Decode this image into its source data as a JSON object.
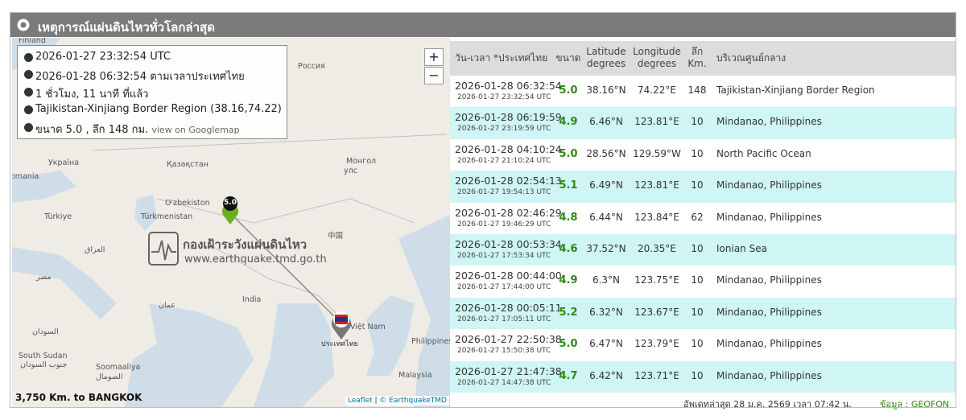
{
  "header": {
    "title": "เหตุการณ์แผ่นดินไหวทั่วโลกล่าสุด"
  },
  "info": {
    "utc": "2026-01-27 23:32:54 UTC",
    "local": "2026-01-28 06:32:54 ตามเวลาประเทศไทย",
    "ago": "1 ชั่วโมง, 11 นาที ที่แล้ว",
    "region": "Tajikistan-Xinjiang Border Region (38.16,74.22)",
    "magnitude": "ขนาด 5.0 , ลึก 148 กม.",
    "map_link": "view on Googlemap"
  },
  "map": {
    "zoom_in": "+",
    "zoom_out": "−",
    "labels": [
      "Finland",
      "Россия",
      "Україна",
      "Қазақстан",
      "Монгол",
      "улс",
      "omania",
      "Türkiye",
      "Türkmenistan",
      "O'zbekiston",
      "中国",
      "العراق",
      "مصر",
      "India",
      "عمان",
      "Việt Nam",
      "Philippines",
      "السودان",
      "South Sudan",
      "جنوب السودان",
      "Soomaaliya",
      "الصومال",
      "Malaysia"
    ],
    "marker": "5.0",
    "bangkok": "ประเทศไทย",
    "watermark_title": "กองเฝ้าระวังแผ่นดินไหว",
    "watermark_url": "www.earthquake.tmd.go.th",
    "distance": "3,750 Km. to BANGKOK",
    "attribution_leaflet": "Leaflet",
    "attribution_source": "© EarthquakeTMD"
  },
  "table": {
    "columns": [
      [
        "วัน-เวลา *ประเทศไทย"
      ],
      [
        "ขนาด"
      ],
      [
        "Latitude",
        "degrees"
      ],
      [
        "Longitude",
        "degrees"
      ],
      [
        "ลึก",
        "Km."
      ],
      [
        "บริเวณศูนย์กลาง"
      ]
    ],
    "rows": [
      [
        "2026-01-28 06:32:54",
        "2026-01-27 23:32:54 UTC",
        "5.0",
        "38.16°N",
        "74.22°E",
        "148",
        "Tajikistan-Xinjiang Border Region"
      ],
      [
        "2026-01-28 06:19:59",
        "2026-01-27 23:19:59 UTC",
        "4.9",
        "6.46°N",
        "123.81°E",
        "10",
        "Mindanao, Philippines"
      ],
      [
        "2026-01-28 04:10:24",
        "2026-01-27 21:10:24 UTC",
        "5.0",
        "28.56°N",
        "129.59°W",
        "10",
        "North Pacific Ocean"
      ],
      [
        "2026-01-28 02:54:13",
        "2026-01-27 19:54:13 UTC",
        "5.1",
        "6.49°N",
        "123.81°E",
        "10",
        "Mindanao, Philippines"
      ],
      [
        "2026-01-28 02:46:29",
        "2026-01-27 19:46:29 UTC",
        "4.8",
        "6.44°N",
        "123.84°E",
        "62",
        "Mindanao, Philippines"
      ],
      [
        "2026-01-28 00:53:34",
        "2026-01-27 17:53:34 UTC",
        "4.6",
        "37.52°N",
        "20.35°E",
        "10",
        "Ionian Sea"
      ],
      [
        "2026-01-28 00:44:00",
        "2026-01-27 17:44:00 UTC",
        "4.9",
        "6.3°N",
        "123.75°E",
        "10",
        "Mindanao, Philippines"
      ],
      [
        "2026-01-28 00:05:11",
        "2026-01-27 17:05:11 UTC",
        "5.2",
        "6.32°N",
        "123.67°E",
        "10",
        "Mindanao, Philippines"
      ],
      [
        "2026-01-27 22:50:38",
        "2026-01-27 15:50:38 UTC",
        "5.0",
        "6.47°N",
        "123.79°E",
        "10",
        "Mindanao, Philippines"
      ],
      [
        "2026-01-27 21:47:38",
        "2026-01-27 14:47:38 UTC",
        "4.7",
        "6.42°N",
        "123.71°E",
        "10",
        "Mindanao, Philippines"
      ]
    ]
  },
  "footer": {
    "updated": "อัพเดทล่าสุด 28 ม.ค. 2569 เวลา 07:42 น.",
    "source": "ข้อมูล : GEOFON"
  }
}
